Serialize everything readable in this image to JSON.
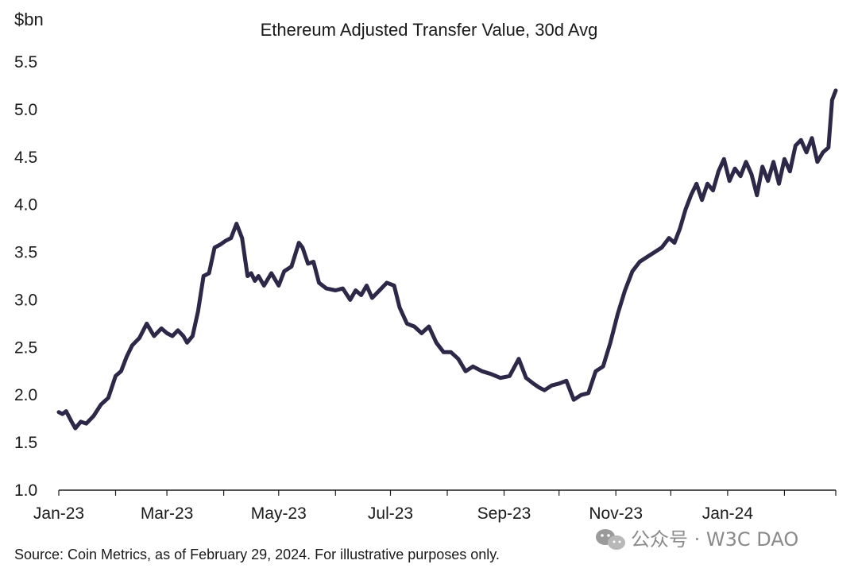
{
  "chart_data": {
    "type": "line",
    "title": "Ethereum Adjusted Transfer Value, 30d Avg",
    "y_unit_label": "$bn",
    "ylim": [
      1.0,
      5.5
    ],
    "y_ticks": [
      "1.0",
      "1.5",
      "2.0",
      "2.5",
      "3.0",
      "3.5",
      "4.0",
      "4.5",
      "5.0",
      "5.5"
    ],
    "x_ticks": [
      "Jan-23",
      "Mar-23",
      "May-23",
      "Jul-23",
      "Sep-23",
      "Nov-23",
      "Jan-24"
    ],
    "x_start": "2023-01-01",
    "x_end": "2024-02-29",
    "grid": false,
    "legend": "none",
    "series_color": "#2d2748",
    "series": [
      {
        "x": [
          "2023-01-01",
          "2023-01-03",
          "2023-01-05",
          "2023-01-08",
          "2023-01-10",
          "2023-01-13",
          "2023-01-16",
          "2023-01-20",
          "2023-01-24",
          "2023-01-28",
          "2023-02-01",
          "2023-02-04",
          "2023-02-07",
          "2023-02-10",
          "2023-02-14",
          "2023-02-18",
          "2023-02-22",
          "2023-02-26",
          "2023-03-01",
          "2023-03-04",
          "2023-03-07",
          "2023-03-10",
          "2023-03-12",
          "2023-03-15",
          "2023-03-18",
          "2023-03-21",
          "2023-03-24",
          "2023-03-27",
          "2023-03-30",
          "2023-04-02",
          "2023-04-05",
          "2023-04-08",
          "2023-04-11",
          "2023-04-14",
          "2023-04-16",
          "2023-04-18",
          "2023-04-20",
          "2023-04-23",
          "2023-04-27",
          "2023-05-01",
          "2023-05-04",
          "2023-05-08",
          "2023-05-12",
          "2023-05-14",
          "2023-05-17",
          "2023-05-20",
          "2023-05-23",
          "2023-05-27",
          "2023-06-01",
          "2023-06-05",
          "2023-06-09",
          "2023-06-12",
          "2023-06-15",
          "2023-06-18",
          "2023-06-21",
          "2023-06-25",
          "2023-06-29",
          "2023-07-03",
          "2023-07-06",
          "2023-07-10",
          "2023-07-14",
          "2023-07-18",
          "2023-07-22",
          "2023-07-26",
          "2023-07-30",
          "2023-08-03",
          "2023-08-07",
          "2023-08-11",
          "2023-08-15",
          "2023-08-20",
          "2023-08-25",
          "2023-08-30",
          "2023-09-04",
          "2023-09-09",
          "2023-09-13",
          "2023-09-17",
          "2023-09-20",
          "2023-09-23",
          "2023-09-27",
          "2023-10-01",
          "2023-10-05",
          "2023-10-09",
          "2023-10-13",
          "2023-10-17",
          "2023-10-21",
          "2023-10-25",
          "2023-10-29",
          "2023-11-02",
          "2023-11-06",
          "2023-11-10",
          "2023-11-14",
          "2023-11-18",
          "2023-11-22",
          "2023-11-26",
          "2023-11-30",
          "2023-12-03",
          "2023-12-06",
          "2023-12-09",
          "2023-12-12",
          "2023-12-15",
          "2023-12-18",
          "2023-12-21",
          "2023-12-24",
          "2023-12-27",
          "2023-12-30",
          "2024-01-02",
          "2024-01-05",
          "2024-01-08",
          "2024-01-11",
          "2024-01-14",
          "2024-01-17",
          "2024-01-20",
          "2024-01-23",
          "2024-01-26",
          "2024-01-29",
          "2024-02-01",
          "2024-02-04",
          "2024-02-07",
          "2024-02-10",
          "2024-02-13",
          "2024-02-16",
          "2024-02-19",
          "2024-02-22",
          "2024-02-25",
          "2024-02-27",
          "2024-02-29"
        ],
        "values": [
          1.82,
          1.8,
          1.83,
          1.72,
          1.65,
          1.72,
          1.7,
          1.78,
          1.9,
          1.97,
          2.2,
          2.25,
          2.4,
          2.52,
          2.6,
          2.75,
          2.62,
          2.7,
          2.65,
          2.62,
          2.68,
          2.62,
          2.55,
          2.62,
          2.88,
          3.25,
          3.28,
          3.55,
          3.58,
          3.62,
          3.65,
          3.8,
          3.65,
          3.25,
          3.28,
          3.2,
          3.25,
          3.15,
          3.28,
          3.15,
          3.3,
          3.35,
          3.6,
          3.55,
          3.38,
          3.4,
          3.18,
          3.12,
          3.1,
          3.12,
          3.0,
          3.1,
          3.05,
          3.15,
          3.02,
          3.1,
          3.18,
          3.15,
          2.92,
          2.75,
          2.72,
          2.65,
          2.72,
          2.55,
          2.45,
          2.45,
          2.38,
          2.25,
          2.3,
          2.25,
          2.22,
          2.18,
          2.2,
          2.38,
          2.18,
          2.12,
          2.08,
          2.05,
          2.1,
          2.12,
          2.15,
          1.95,
          2.0,
          2.02,
          2.25,
          2.3,
          2.55,
          2.85,
          3.1,
          3.3,
          3.4,
          3.45,
          3.5,
          3.55,
          3.65,
          3.6,
          3.75,
          3.95,
          4.1,
          4.22,
          4.05,
          4.22,
          4.15,
          4.35,
          4.48,
          4.25,
          4.38,
          4.3,
          4.45,
          4.32,
          4.1,
          4.4,
          4.25,
          4.45,
          4.22,
          4.48,
          4.35,
          4.62,
          4.68,
          4.55,
          4.7,
          4.45,
          4.55,
          4.6,
          5.1,
          5.2
        ]
      }
    ]
  },
  "source_note": "Source: Coin Metrics, as of February 29, 2024. For illustrative purposes only.",
  "watermark": {
    "text": "公众号 · W3C DAO",
    "icon": "wechat-icon"
  }
}
